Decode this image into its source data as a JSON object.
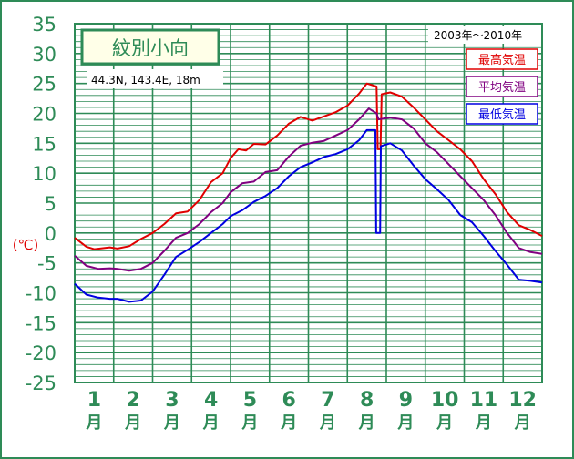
{
  "chart_data": {
    "type": "line",
    "title": "紋別小向",
    "subtitle": "44.3N,  143.4E,  18m",
    "period": "2003年〜2010年",
    "ylabel": "(℃)",
    "ylim": [
      -25,
      35
    ],
    "yticks": [
      35,
      30,
      25,
      20,
      15,
      10,
      5,
      0,
      -5,
      -10,
      -15,
      -20,
      -25
    ],
    "categories": [
      "1\n月",
      "2\n月",
      "3\n月",
      "4\n月",
      "5\n月",
      "6\n月",
      "7\n月",
      "8\n月",
      "9\n月",
      "10\n月",
      "11\n月",
      "12\n月"
    ],
    "month_numbers": [
      "1",
      "2",
      "3",
      "4",
      "5",
      "6",
      "7",
      "8",
      "9",
      "10",
      "11",
      "12"
    ],
    "month_unit": "月",
    "grid": true,
    "legend_position": "top-right",
    "series": [
      {
        "name": "最高気温",
        "color": "#e00000",
        "points": [
          [
            0.0,
            -0.8
          ],
          [
            0.3,
            -2.3
          ],
          [
            0.5,
            -2.7
          ],
          [
            0.9,
            -2.4
          ],
          [
            1.1,
            -2.6
          ],
          [
            1.4,
            -2.2
          ],
          [
            1.7,
            -1.0
          ],
          [
            2.0,
            0.0
          ],
          [
            2.3,
            1.5
          ],
          [
            2.6,
            3.3
          ],
          [
            2.9,
            3.6
          ],
          [
            3.2,
            5.5
          ],
          [
            3.5,
            8.5
          ],
          [
            3.8,
            10.0
          ],
          [
            4.0,
            12.5
          ],
          [
            4.2,
            14.0
          ],
          [
            4.4,
            13.8
          ],
          [
            4.6,
            14.9
          ],
          [
            4.9,
            14.8
          ],
          [
            5.2,
            16.3
          ],
          [
            5.5,
            18.3
          ],
          [
            5.8,
            19.4
          ],
          [
            6.1,
            18.8
          ],
          [
            6.4,
            19.5
          ],
          [
            6.7,
            20.2
          ],
          [
            7.0,
            21.3
          ],
          [
            7.3,
            23.3
          ],
          [
            7.5,
            25.0
          ],
          [
            7.75,
            24.5
          ],
          [
            7.78,
            14.0
          ],
          [
            7.85,
            14.0
          ],
          [
            7.88,
            23.2
          ],
          [
            8.1,
            23.5
          ],
          [
            8.4,
            22.8
          ],
          [
            8.7,
            21.0
          ],
          [
            9.0,
            19.0
          ],
          [
            9.3,
            17.0
          ],
          [
            9.6,
            15.5
          ],
          [
            9.9,
            14.0
          ],
          [
            10.2,
            12.0
          ],
          [
            10.5,
            9.0
          ],
          [
            10.8,
            6.5
          ],
          [
            11.1,
            3.5
          ],
          [
            11.4,
            1.3
          ],
          [
            11.7,
            0.5
          ],
          [
            12.0,
            -0.5
          ]
        ]
      },
      {
        "name": "平均気温",
        "color": "#800080",
        "points": [
          [
            0.0,
            -3.8
          ],
          [
            0.3,
            -5.5
          ],
          [
            0.6,
            -6.0
          ],
          [
            0.9,
            -5.9
          ],
          [
            1.1,
            -6.0
          ],
          [
            1.4,
            -6.3
          ],
          [
            1.7,
            -6.0
          ],
          [
            2.0,
            -5.0
          ],
          [
            2.3,
            -3.0
          ],
          [
            2.6,
            -0.8
          ],
          [
            2.9,
            0.0
          ],
          [
            3.2,
            1.5
          ],
          [
            3.5,
            3.5
          ],
          [
            3.8,
            5.0
          ],
          [
            4.0,
            6.8
          ],
          [
            4.3,
            8.3
          ],
          [
            4.6,
            8.6
          ],
          [
            4.9,
            10.2
          ],
          [
            5.2,
            10.5
          ],
          [
            5.5,
            12.8
          ],
          [
            5.8,
            14.6
          ],
          [
            6.1,
            15.1
          ],
          [
            6.4,
            15.4
          ],
          [
            6.7,
            16.3
          ],
          [
            7.0,
            17.2
          ],
          [
            7.3,
            19.0
          ],
          [
            7.55,
            20.8
          ],
          [
            7.75,
            20.0
          ],
          [
            7.8,
            19.0
          ],
          [
            8.1,
            19.3
          ],
          [
            8.4,
            19.0
          ],
          [
            8.7,
            17.5
          ],
          [
            9.0,
            15.0
          ],
          [
            9.3,
            13.5
          ],
          [
            9.6,
            11.5
          ],
          [
            9.9,
            9.5
          ],
          [
            10.2,
            7.5
          ],
          [
            10.5,
            5.5
          ],
          [
            10.8,
            3.0
          ],
          [
            11.1,
            0.0
          ],
          [
            11.4,
            -2.5
          ],
          [
            11.7,
            -3.2
          ],
          [
            12.0,
            -3.5
          ]
        ]
      },
      {
        "name": "最低気温",
        "color": "#0000e0",
        "points": [
          [
            0.0,
            -8.5
          ],
          [
            0.3,
            -10.3
          ],
          [
            0.6,
            -10.8
          ],
          [
            0.9,
            -11.0
          ],
          [
            1.1,
            -11.0
          ],
          [
            1.4,
            -11.5
          ],
          [
            1.7,
            -11.3
          ],
          [
            2.0,
            -9.8
          ],
          [
            2.3,
            -7.0
          ],
          [
            2.6,
            -4.0
          ],
          [
            2.9,
            -2.8
          ],
          [
            3.2,
            -1.5
          ],
          [
            3.5,
            0.0
          ],
          [
            3.8,
            1.5
          ],
          [
            4.0,
            2.8
          ],
          [
            4.3,
            3.8
          ],
          [
            4.6,
            5.2
          ],
          [
            4.9,
            6.2
          ],
          [
            5.2,
            7.5
          ],
          [
            5.5,
            9.5
          ],
          [
            5.8,
            11.0
          ],
          [
            6.1,
            11.8
          ],
          [
            6.4,
            12.7
          ],
          [
            6.7,
            13.2
          ],
          [
            7.0,
            14.0
          ],
          [
            7.3,
            15.5
          ],
          [
            7.5,
            17.2
          ],
          [
            7.72,
            17.2
          ],
          [
            7.74,
            0.0
          ],
          [
            7.84,
            0.0
          ],
          [
            7.86,
            14.5
          ],
          [
            8.1,
            15.0
          ],
          [
            8.4,
            13.8
          ],
          [
            8.7,
            11.3
          ],
          [
            9.0,
            9.0
          ],
          [
            9.3,
            7.3
          ],
          [
            9.6,
            5.5
          ],
          [
            9.9,
            3.0
          ],
          [
            10.2,
            1.8
          ],
          [
            10.5,
            -0.5
          ],
          [
            10.8,
            -3.0
          ],
          [
            11.1,
            -5.3
          ],
          [
            11.4,
            -7.8
          ],
          [
            11.7,
            -8.0
          ],
          [
            12.0,
            -8.3
          ]
        ]
      }
    ]
  }
}
